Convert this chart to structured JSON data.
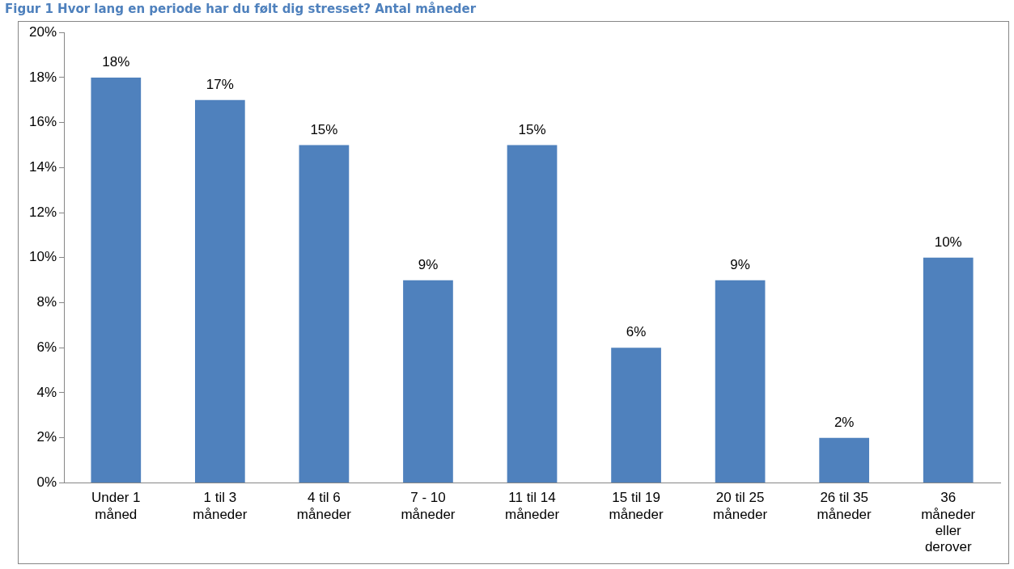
{
  "chart_data": {
    "type": "bar",
    "title": "Figur 1 Hvor lang en periode har du følt dig stresset? Antal måneder",
    "categories": [
      "Under 1 måned",
      "1 til 3 måneder",
      "4 til 6 måneder",
      "7 - 10 måneder",
      "11 til 14 måneder",
      "15 til 19 måneder",
      "20 til 25 måneder",
      "26 til 35 måneder",
      "36 måneder eller derover"
    ],
    "values": [
      18,
      17,
      15,
      9,
      15,
      6,
      9,
      2,
      10
    ],
    "value_labels": [
      "18%",
      "17%",
      "15%",
      "9%",
      "15%",
      "6%",
      "9%",
      "2%",
      "10%"
    ],
    "color": "#4f81bd",
    "ylim": [
      0,
      20
    ],
    "yticks": [
      {
        "value": 0,
        "label": "0%"
      },
      {
        "value": 2,
        "label": "2%"
      },
      {
        "value": 4,
        "label": "4%"
      },
      {
        "value": 6,
        "label": "6%"
      },
      {
        "value": 8,
        "label": "8%"
      },
      {
        "value": 10,
        "label": "10%"
      },
      {
        "value": 12,
        "label": "12%"
      },
      {
        "value": 14,
        "label": "14%"
      },
      {
        "value": 16,
        "label": "16%"
      },
      {
        "value": 18,
        "label": "18%"
      },
      {
        "value": 20,
        "label": "20%"
      }
    ],
    "grid": false,
    "legend": false
  }
}
